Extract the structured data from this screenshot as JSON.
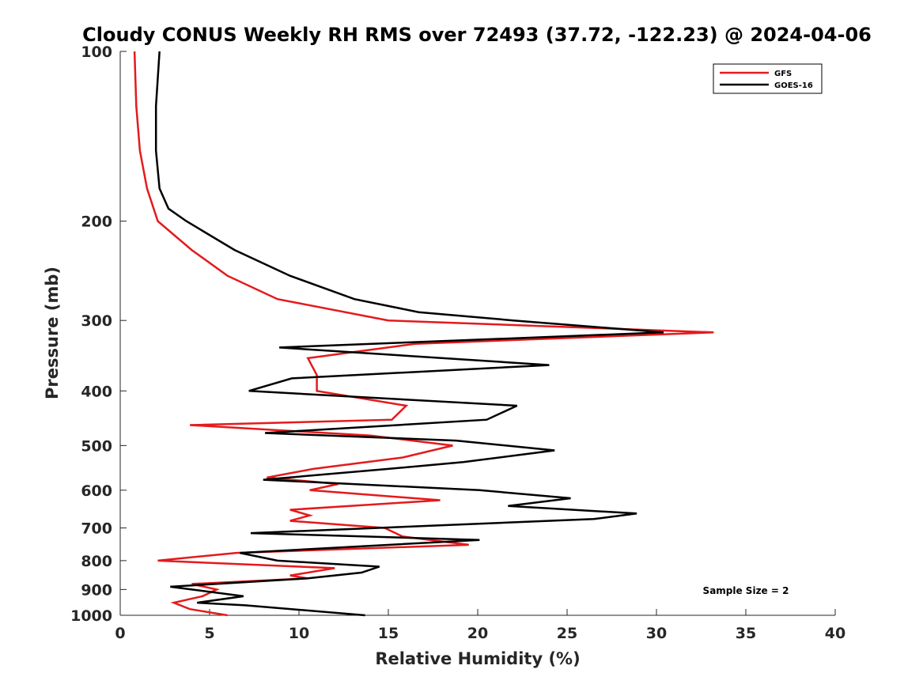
{
  "chart_data": {
    "type": "line",
    "title": "Cloudy CONUS Weekly RH RMS over 72493 (37.72, -122.23) @ 2024-04-06",
    "xlabel": "Relative Humidity (%)",
    "ylabel": "Pressure (mb)",
    "xlim": [
      0,
      40
    ],
    "ylim": [
      100,
      1000
    ],
    "yscale": "log",
    "yreversed": true,
    "xticks": [
      "0",
      "5",
      "10",
      "15",
      "20",
      "25",
      "30",
      "35",
      "40"
    ],
    "yticks": [
      "100",
      "200",
      "300",
      "400",
      "500",
      "600",
      "700",
      "800",
      "900",
      "1000"
    ],
    "legend_position": "top-right",
    "annotation": "Sample Size = 2",
    "series": [
      {
        "name": "GFS",
        "color": "#e41a1c",
        "points": [
          [
            0.8,
            100
          ],
          [
            0.9,
            125
          ],
          [
            1.1,
            150
          ],
          [
            1.5,
            175
          ],
          [
            2.1,
            200
          ],
          [
            4.0,
            225
          ],
          [
            6.0,
            250
          ],
          [
            8.8,
            275
          ],
          [
            15.0,
            300
          ],
          [
            33.2,
            315
          ],
          [
            16.5,
            330
          ],
          [
            10.5,
            350
          ],
          [
            11.0,
            375
          ],
          [
            11.0,
            400
          ],
          [
            16.0,
            425
          ],
          [
            15.2,
            450
          ],
          [
            3.9,
            460
          ],
          [
            14.0,
            480
          ],
          [
            18.6,
            500
          ],
          [
            15.8,
            525
          ],
          [
            10.8,
            550
          ],
          [
            8.2,
            570
          ],
          [
            12.2,
            585
          ],
          [
            10.6,
            600
          ],
          [
            17.9,
            625
          ],
          [
            9.5,
            650
          ],
          [
            10.6,
            665
          ],
          [
            9.5,
            680
          ],
          [
            14.8,
            700
          ],
          [
            15.8,
            725
          ],
          [
            19.5,
            750
          ],
          [
            6.5,
            775
          ],
          [
            2.1,
            800
          ],
          [
            12.0,
            825
          ],
          [
            9.5,
            850
          ],
          [
            10.5,
            860
          ],
          [
            4.0,
            880
          ],
          [
            5.4,
            900
          ],
          [
            4.6,
            925
          ],
          [
            3.0,
            950
          ],
          [
            3.9,
            975
          ],
          [
            6.0,
            1000
          ]
        ]
      },
      {
        "name": "GOES-16",
        "color": "#000000",
        "points": [
          [
            2.2,
            100
          ],
          [
            2.0,
            125
          ],
          [
            2.0,
            150
          ],
          [
            2.2,
            175
          ],
          [
            2.7,
            190
          ],
          [
            3.7,
            200
          ],
          [
            6.4,
            225
          ],
          [
            9.5,
            250
          ],
          [
            13.1,
            275
          ],
          [
            16.7,
            290
          ],
          [
            22.0,
            300
          ],
          [
            30.4,
            315
          ],
          [
            8.9,
            335
          ],
          [
            24.0,
            360
          ],
          [
            9.6,
            380
          ],
          [
            7.2,
            400
          ],
          [
            22.2,
            425
          ],
          [
            20.5,
            450
          ],
          [
            8.1,
            475
          ],
          [
            18.8,
            490
          ],
          [
            24.3,
            510
          ],
          [
            19.2,
            535
          ],
          [
            15.0,
            550
          ],
          [
            8.0,
            575
          ],
          [
            20.1,
            600
          ],
          [
            25.2,
            620
          ],
          [
            21.7,
            640
          ],
          [
            28.9,
            660
          ],
          [
            26.5,
            675
          ],
          [
            7.3,
            715
          ],
          [
            20.1,
            735
          ],
          [
            6.7,
            775
          ],
          [
            8.8,
            800
          ],
          [
            14.5,
            820
          ],
          [
            13.5,
            840
          ],
          [
            10.5,
            860
          ],
          [
            2.8,
            890
          ],
          [
            6.9,
            925
          ],
          [
            4.3,
            950
          ],
          [
            7.0,
            960
          ],
          [
            13.7,
            1000
          ]
        ]
      }
    ]
  }
}
